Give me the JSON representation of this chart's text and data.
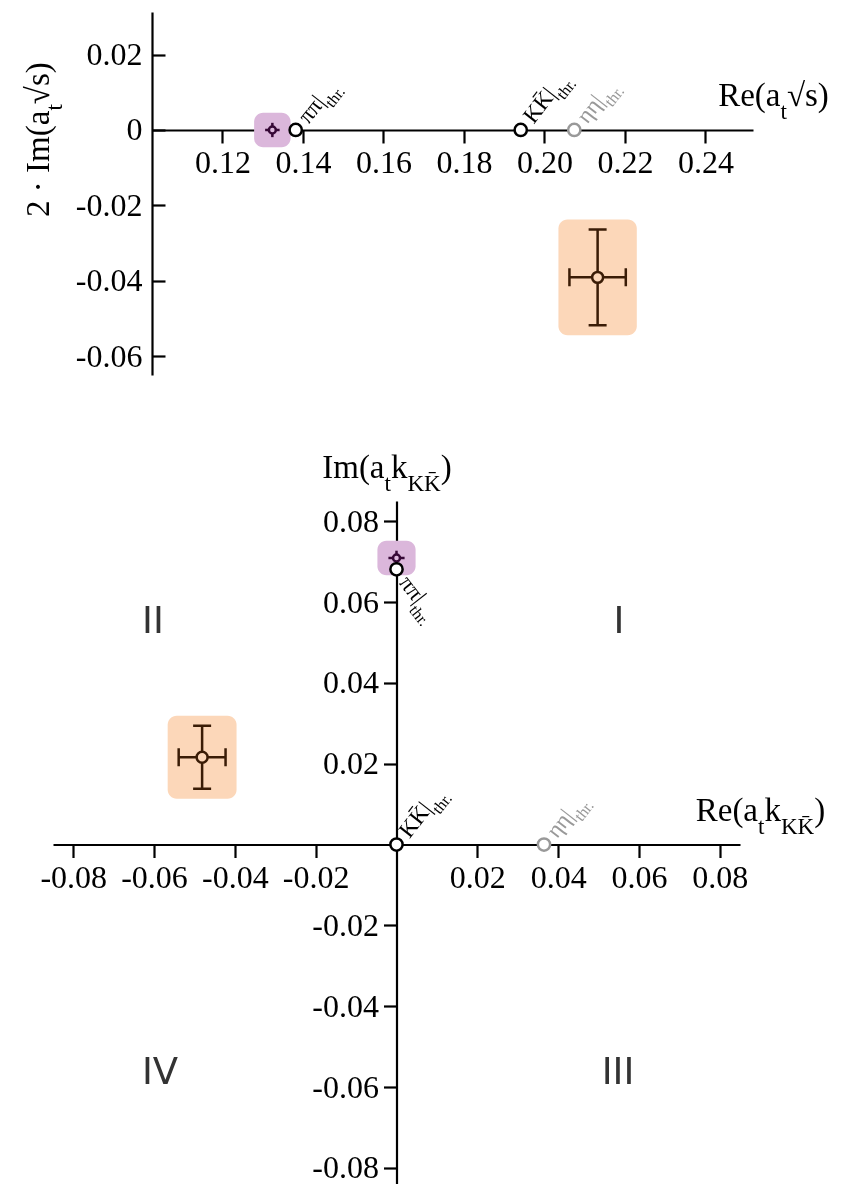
{
  "chart_data": [
    {
      "type": "scatter",
      "xlabel": "Re(a$_{t}$√s)",
      "ylabel": "2 · Im(a$_{t}$√s)",
      "xlim": [
        0.1025,
        0.2518
      ],
      "ylim": [
        -0.065,
        0.0313
      ],
      "xticks": [
        0.12,
        0.14,
        0.16,
        0.18,
        {
          "value": 0.2,
          "label": "0.20"
        },
        0.22,
        0.24
      ],
      "yticks": [
        -0.06,
        -0.04,
        -0.02,
        0,
        0.02
      ],
      "series": [
        {
          "color": "#360836",
          "x": [
            0.1324
          ],
          "values": [
            0
          ],
          "xerrors": [
            0.0018
          ],
          "errors": [
            0.0019
          ]
        },
        {
          "color": "#3a1c06",
          "x": [
            0.2132
          ],
          "values": [
            -0.0391
          ],
          "xerrors": [
            0.007
          ],
          "errors": [
            0.0127
          ]
        },
        {
          "name": "ππ|$_{thr.}$",
          "color": "#000000",
          "x": [
            0.1382
          ],
          "values": [
            0
          ]
        },
        {
          "name": "KK̄|$_{thr.}$",
          "color": "#000000",
          "x": [
            0.1941
          ],
          "values": [
            0
          ]
        },
        {
          "name": "ηη|$_{thr.}$",
          "color": "#999999",
          "x": [
            0.2074
          ],
          "values": [
            0
          ]
        }
      ]
    },
    {
      "type": "scatter",
      "xlabel": "Re(a$_{t}$k$_{KK̄}$)",
      "ylabel": "Im(a$_{t}$k$_{KK̄}$)",
      "xlim": [
        -0.085,
        0.085
      ],
      "ylim": [
        -0.084,
        0.085
      ],
      "xticks": [
        -0.08,
        -0.06,
        -0.04,
        -0.02,
        0.02,
        0.04,
        0.06,
        0.08
      ],
      "yticks": [
        -0.08,
        -0.06,
        -0.04,
        -0.02,
        0.02,
        0.04,
        0.06,
        0.08
      ],
      "annotations": [
        "II",
        "I",
        "IV",
        "III"
      ],
      "series": [
        {
          "color": "#360836",
          "x": [
            0
          ],
          "values": [
            0.0709
          ],
          "xerrors": [
            0.002
          ],
          "errors": [
            0.0018
          ]
        },
        {
          "color": "#3a1c06",
          "x": [
            -0.0481
          ],
          "values": [
            0.0216
          ],
          "xerrors": [
            0.0058
          ],
          "errors": [
            0.0078
          ]
        },
        {
          "name": "ππ|$_{thr.}$",
          "color": "#000000",
          "x": [
            0
          ],
          "values": [
            0.0681
          ]
        },
        {
          "name": "KK̄|$_{thr.}$",
          "color": "#000000",
          "x": [
            0
          ],
          "values": [
            0
          ]
        },
        {
          "name": "ηη|$_{thr.}$",
          "color": "#999999",
          "x": [
            0.0365
          ],
          "values": [
            0
          ]
        }
      ]
    }
  ]
}
